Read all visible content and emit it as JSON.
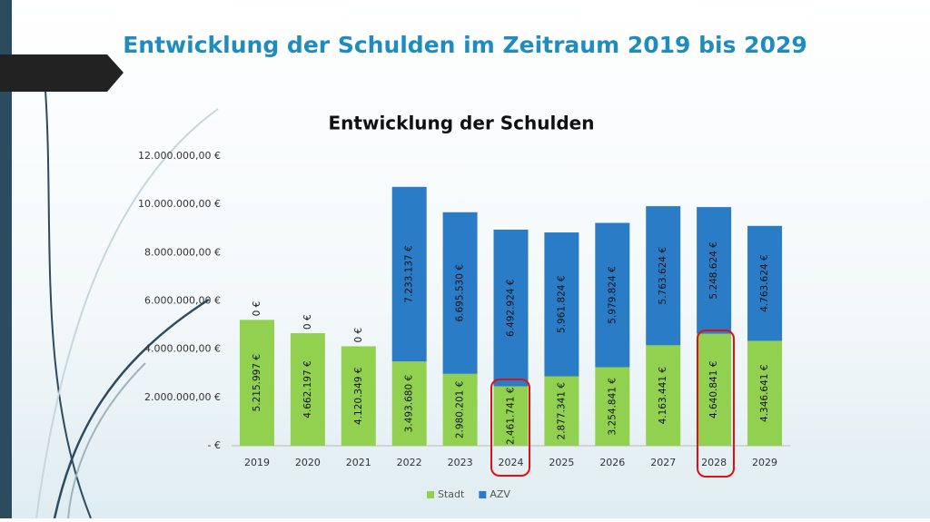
{
  "slide_title": "Entwicklung der Schulden im Zeitraum 2019 bis 2029",
  "chart_data": {
    "type": "stacked_bar",
    "title": "Entwicklung der Schulden",
    "categories": [
      "2019",
      "2020",
      "2021",
      "2022",
      "2023",
      "2024",
      "2025",
      "2026",
      "2027",
      "2028",
      "2029"
    ],
    "series": [
      {
        "name": "Stadt",
        "color": "#92d050",
        "values": [
          5215997,
          4662197,
          4120349,
          3493680,
          2980201,
          2461741,
          2877341,
          3254841,
          4163441,
          4640841,
          4346641
        ],
        "value_labels": [
          "5.215.997 €",
          "4.662.197 €",
          "4.120.349 €",
          "3.493.680 €",
          "2.980.201 €",
          "2.461.741 €",
          "2.877.341 €",
          "3.254.841 €",
          "4.163.441 €",
          "4.640.841 €",
          "4.346.641 €"
        ]
      },
      {
        "name": "AZV",
        "color": "#2a7cc7",
        "values": [
          0,
          0,
          0,
          7233137,
          6695530,
          6492924,
          5961824,
          5979824,
          5763624,
          5248624,
          4763624
        ],
        "value_labels": [
          "0 €",
          "0 €",
          "0 €",
          "7.233.137 €",
          "6.695.530 €",
          "6.492.924 €",
          "5.961.824 €",
          "5.979.824 €",
          "5.763.624 €",
          "5.248.624 €",
          "4.763.624 €"
        ]
      }
    ],
    "ylim": [
      0,
      12000000
    ],
    "yticks": [
      {
        "value": 0,
        "label": "-   €"
      },
      {
        "value": 2000000,
        "label": "2.000.000,00 €"
      },
      {
        "value": 4000000,
        "label": "4.000.000,00 €"
      },
      {
        "value": 6000000,
        "label": "6.000.000,00 €"
      },
      {
        "value": 8000000,
        "label": "8.000.000,00 €"
      },
      {
        "value": 10000000,
        "label": "10.000.000,00 €"
      },
      {
        "value": 12000000,
        "label": "12.000.000,00 €"
      }
    ],
    "grid": false,
    "legend": "bottom"
  }
}
